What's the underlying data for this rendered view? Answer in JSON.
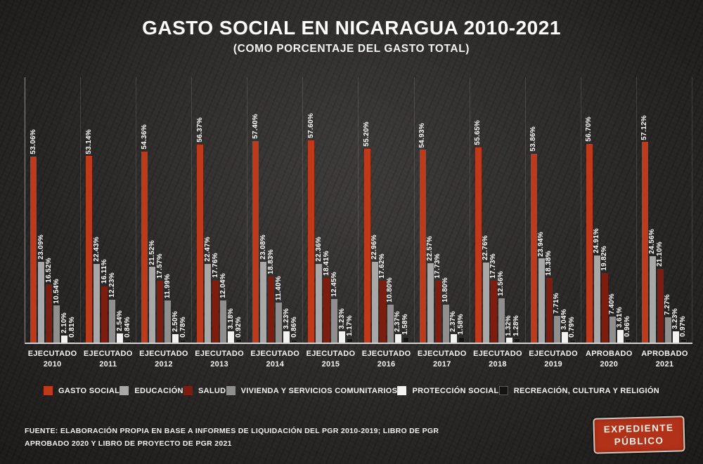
{
  "title": "GASTO SOCIAL EN NICARAGUA 2010-2021",
  "subtitle": "(COMO PORCENTAJE DEL GASTO TOTAL)",
  "source": {
    "line1": "FUENTE: ELABORACIÓN PROPIA EN BASE A INFORMES DE LIQUIDACIÓN DEL PGR 2010-2019; LIBRO DE PGR",
    "line2": "APROBADO 2020 Y LIBRO DE PROYECTO DE PGR 2021"
  },
  "logo": {
    "line1": "EXPEDIENTE",
    "line2": "PÚBLICO"
  },
  "colors": {
    "background": "#282625",
    "axis": "#f0f0f0",
    "value_label": "#ffffff",
    "accent_red": "#bf3a1b"
  },
  "chart_data": {
    "type": "bar",
    "title": "GASTO SOCIAL EN NICARAGUA 2010-2021",
    "subtitle": "(COMO PORCENTAJE DEL GASTO TOTAL)",
    "xlabel": "",
    "ylabel": "",
    "ylim": [
      0,
      76
    ],
    "grid": "vertical-group-separators",
    "legend_position": "bottom",
    "value_format": "0.00%",
    "categories": [
      {
        "line1": "EJECUTADO",
        "line2": "2010"
      },
      {
        "line1": "EJECUTADO",
        "line2": "2011"
      },
      {
        "line1": "EJECUTADO",
        "line2": "2012"
      },
      {
        "line1": "EJECUTADO",
        "line2": "2013"
      },
      {
        "line1": "EJECUTADO",
        "line2": "2014"
      },
      {
        "line1": "EJECUTADO",
        "line2": "2015"
      },
      {
        "line1": "EJECUTADO",
        "line2": "2016"
      },
      {
        "line1": "EJECUTADO",
        "line2": "2017"
      },
      {
        "line1": "EJECUTADO",
        "line2": "2018"
      },
      {
        "line1": "EJECUTADO",
        "line2": "2019"
      },
      {
        "line1": "APROBADO",
        "line2": "2020"
      },
      {
        "line1": "APROBADO",
        "line2": "2021"
      }
    ],
    "series": [
      {
        "name": "GASTO SOCIAL",
        "color": "#bf3a1b",
        "values": [
          53.06,
          53.14,
          54.36,
          56.37,
          57.4,
          57.6,
          55.2,
          54.93,
          55.65,
          53.86,
          56.7,
          57.12
        ]
      },
      {
        "name": "EDUCACIÓN",
        "color": "#a8a8a8",
        "values": [
          23.09,
          22.43,
          21.52,
          22.47,
          23.08,
          22.36,
          22.96,
          22.57,
          22.76,
          23.94,
          24.91,
          24.56
        ]
      },
      {
        "name": "SALUD",
        "color": "#7c1d10",
        "values": [
          16.52,
          16.11,
          17.57,
          17.76,
          18.83,
          18.41,
          17.62,
          17.73,
          17.73,
          18.38,
          19.82,
          21.1
        ]
      },
      {
        "name": "VIVIENDA Y SERVICIOS COMUNITARIOS",
        "color": "#8f8f8f",
        "values": [
          10.54,
          12.23,
          11.99,
          12.04,
          11.4,
          12.45,
          10.8,
          10.8,
          12.56,
          7.71,
          7.4,
          7.27
        ]
      },
      {
        "name": "PROTECCIÓN SOCIAL",
        "color": "#f2f2f2",
        "values": [
          2.1,
          2.54,
          2.5,
          3.18,
          3.23,
          3.23,
          2.37,
          2.37,
          1.32,
          3.04,
          3.61,
          3.23
        ]
      },
      {
        "name": "RECREACIÓN, CULTURA Y RELIGIÓN",
        "color": "#161413",
        "values": [
          0.81,
          0.84,
          0.78,
          0.92,
          0.86,
          1.17,
          1.58,
          1.58,
          1.28,
          0.79,
          0.96,
          0.97
        ]
      }
    ]
  }
}
